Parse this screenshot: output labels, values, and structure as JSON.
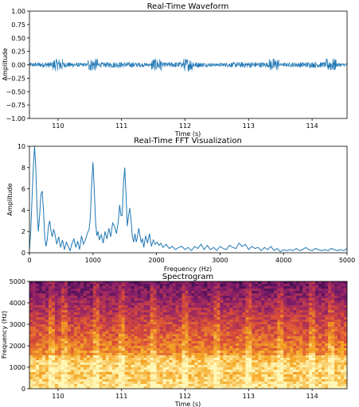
{
  "chart_data": [
    {
      "type": "line",
      "title": "Real-Time Waveform",
      "xlabel": "Time (s)",
      "ylabel": "Amplitude",
      "xlim": [
        109.55,
        114.55
      ],
      "ylim": [
        -1.0,
        1.0
      ],
      "xticks": [
        "110",
        "111",
        "112",
        "113",
        "114"
      ],
      "yticks": [
        "1.00",
        "0.75",
        "0.50",
        "0.25",
        "0.00",
        "−0.25",
        "−0.50",
        "−0.75",
        "−1.00"
      ],
      "series": [
        {
          "color": "#1f77b4",
          "baseline": 0.0,
          "typical_abs_amplitude": 0.05,
          "peak_abs_amplitude": 0.12
        }
      ]
    },
    {
      "type": "line",
      "title": "Real-Time FFT Visualization",
      "xlabel": "Frequency (Hz)",
      "ylabel": "Amplitude",
      "xlim": [
        0,
        5000
      ],
      "ylim": [
        0,
        10
      ],
      "xticks": [
        "0",
        "1000",
        "2000",
        "3000",
        "4000",
        "5000"
      ],
      "yticks": [
        "10",
        "8",
        "6",
        "4",
        "2",
        "0"
      ],
      "series": [
        {
          "color": "#1f77b4",
          "x": [
            0,
            20,
            40,
            60,
            80,
            100,
            120,
            140,
            160,
            180,
            200,
            220,
            240,
            260,
            280,
            300,
            320,
            340,
            360,
            380,
            400,
            430,
            460,
            490,
            520,
            550,
            580,
            610,
            640,
            670,
            700,
            730,
            760,
            790,
            820,
            850,
            880,
            910,
            940,
            960,
            980,
            1000,
            1020,
            1040,
            1060,
            1080,
            1100,
            1130,
            1160,
            1190,
            1220,
            1250,
            1280,
            1310,
            1340,
            1370,
            1400,
            1420,
            1440,
            1460,
            1480,
            1500,
            1520,
            1540,
            1560,
            1580,
            1600,
            1620,
            1640,
            1660,
            1680,
            1700,
            1720,
            1740,
            1760,
            1780,
            1800,
            1830,
            1860,
            1890,
            1920,
            1950,
            1980,
            2010,
            2040,
            2070,
            2100,
            2150,
            2200,
            2250,
            2300,
            2350,
            2400,
            2450,
            2500,
            2550,
            2600,
            2650,
            2700,
            2750,
            2800,
            2850,
            2900,
            2950,
            3000,
            3050,
            3100,
            3150,
            3200,
            3250,
            3300,
            3350,
            3400,
            3450,
            3500,
            3550,
            3600,
            3650,
            3700,
            3750,
            3800,
            3850,
            3900,
            3950,
            4000,
            4050,
            4100,
            4150,
            4200,
            4250,
            4300,
            4350,
            4400,
            4450,
            4500,
            4550,
            4600,
            4650,
            4700,
            4750,
            4800,
            4850,
            4900,
            4950,
            5000
          ],
          "y": [
            0.3,
            2.0,
            5.0,
            8.0,
            10.0,
            8.0,
            4.0,
            2.0,
            3.5,
            5.5,
            5.8,
            4.0,
            1.5,
            0.6,
            1.2,
            2.5,
            3.0,
            2.0,
            1.5,
            2.2,
            1.8,
            0.8,
            1.5,
            0.5,
            1.2,
            0.3,
            1.0,
            0.6,
            0.2,
            0.9,
            1.3,
            0.5,
            1.1,
            0.3,
            1.6,
            0.8,
            1.2,
            1.8,
            2.2,
            3.5,
            6.5,
            8.5,
            6.0,
            3.0,
            1.6,
            2.0,
            1.2,
            1.7,
            0.9,
            2.0,
            1.3,
            2.3,
            1.5,
            2.8,
            2.5,
            1.8,
            3.0,
            4.5,
            3.5,
            3.5,
            6.5,
            8.0,
            5.5,
            2.5,
            3.5,
            4.2,
            3.0,
            1.5,
            1.0,
            1.8,
            1.0,
            1.5,
            2.3,
            1.6,
            1.0,
            1.3,
            0.5,
            1.6,
            0.9,
            1.8,
            0.6,
            1.2,
            0.8,
            1.0,
            0.7,
            0.9,
            0.5,
            0.8,
            0.4,
            0.6,
            0.3,
            0.5,
            0.6,
            0.3,
            0.5,
            0.2,
            0.6,
            0.4,
            0.8,
            0.3,
            0.7,
            0.3,
            0.5,
            0.2,
            0.6,
            0.4,
            0.3,
            0.7,
            0.5,
            0.4,
            0.9,
            0.6,
            0.8,
            0.3,
            0.6,
            0.4,
            0.5,
            0.2,
            0.5,
            0.3,
            0.6,
            0.2,
            0.4,
            0.1,
            0.3,
            0.2,
            0.3,
            0.2,
            0.4,
            0.2,
            0.3,
            0.5,
            0.3,
            0.2,
            0.4,
            0.3,
            0.2,
            0.3,
            0.2,
            0.4,
            0.3,
            0.2,
            0.3,
            0.2,
            0.4
          ]
        }
      ]
    },
    {
      "type": "heatmap",
      "title": "Spectrogram",
      "xlabel": "Time (s)",
      "ylabel": "Frequency (Hz)",
      "xlim": [
        109.55,
        114.55
      ],
      "ylim": [
        0,
        5000
      ],
      "xticks": [
        "110",
        "111",
        "112",
        "113",
        "114"
      ],
      "yticks": [
        "5000",
        "4000",
        "3000",
        "2000",
        "1000",
        "0"
      ],
      "colormap": [
        "#2d0a4e",
        "#8b1f6a",
        "#d84a3a",
        "#f5a623",
        "#fff8b8"
      ],
      "bright_time_stripes_s": [
        109.9,
        110.1,
        110.6,
        111.0,
        111.5,
        112.0,
        112.5,
        113.0,
        113.5,
        114.0,
        114.3
      ],
      "bright_band_hz": [
        800,
        1600
      ]
    }
  ]
}
